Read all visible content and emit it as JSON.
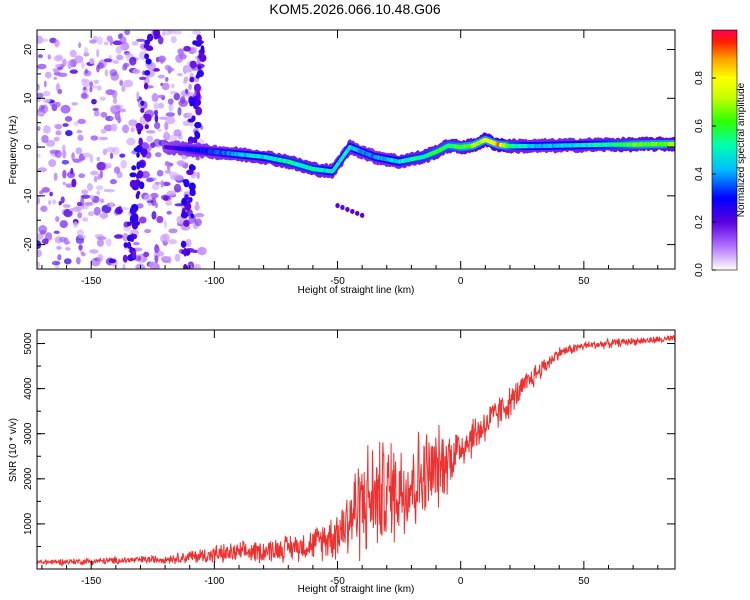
{
  "figure_title": "KOM5.2026.066.10.48.G06",
  "colors": {
    "snr_line": "#ee3030",
    "frame": "#000000",
    "background": "#ffffff"
  },
  "chart_data": [
    {
      "type": "heatmap",
      "title": "KOM5.2026.066.10.48.G06",
      "xlabel": "Height of straight line (km)",
      "ylabel": "Frequency (Hz)",
      "xlim": [
        -172,
        87
      ],
      "ylim": [
        -25,
        24
      ],
      "x_ticks": [
        -150,
        -100,
        -50,
        0,
        50
      ],
      "x_tick_labels": [
        "-150",
        "-100",
        "-50",
        "0",
        "50"
      ],
      "y_ticks": [
        -20,
        -10,
        0,
        10,
        20
      ],
      "y_tick_labels": [
        "-20",
        "-10",
        "0",
        "10",
        "20"
      ],
      "colorbar": {
        "label": "Normalized spectral amplitude",
        "range": [
          0,
          1
        ],
        "ticks": [
          0.0,
          0.2,
          0.4,
          0.6,
          0.8
        ],
        "tick_labels": [
          "0.0",
          "0.2",
          "0.4",
          "0.6",
          "0.8"
        ],
        "colormap": "rainbow (white-violet-blue-cyan-green-yellow-orange-red)"
      },
      "ridge": {
        "description": "frequency of the spectral maximum vs height",
        "height_km": [
          -120,
          -110,
          -100,
          -90,
          -80,
          -70,
          -60,
          -52,
          -45,
          -40,
          -35,
          -30,
          -25,
          -20,
          -15,
          -10,
          -5,
          0,
          5,
          10,
          15,
          20,
          30,
          40,
          50,
          60,
          70,
          80,
          87
        ],
        "freq_hz": [
          0,
          -0.5,
          -1,
          -1.5,
          -2,
          -3,
          -4.5,
          -5,
          0,
          -1,
          -2,
          -2.5,
          -3,
          -2.5,
          -2,
          -1,
          0.3,
          0,
          0.3,
          1.5,
          0.5,
          0.2,
          0.2,
          0.3,
          0.4,
          0.5,
          0.5,
          0.6,
          0.6
        ],
        "amplitude": [
          0.2,
          0.3,
          0.35,
          0.45,
          0.5,
          0.55,
          0.55,
          0.5,
          0.5,
          0.4,
          0.4,
          0.45,
          0.5,
          0.55,
          0.55,
          0.6,
          0.6,
          0.65,
          0.7,
          0.8,
          0.95,
          0.6,
          0.45,
          0.45,
          0.5,
          0.55,
          0.65,
          0.7,
          0.7
        ]
      },
      "noise_region": {
        "description": "scattered weak (violet) spectral amplitude below about -105 km",
        "height_range_km": [
          -172,
          -105
        ],
        "amplitude_range": [
          0.05,
          0.25
        ]
      },
      "secondary_blob": {
        "height_km": [
          -50,
          -40
        ],
        "freq_hz": [
          -14,
          -12
        ],
        "amplitude": 0.2
      }
    },
    {
      "type": "line",
      "xlabel": "Height of straight line (km)",
      "ylabel": "SNR (10 * v/v)",
      "xlim": [
        -172,
        87
      ],
      "ylim": [
        0,
        5300
      ],
      "x_ticks": [
        -150,
        -100,
        -50,
        0,
        50
      ],
      "x_tick_labels": [
        "-150",
        "-100",
        "-50",
        "0",
        "50"
      ],
      "y_ticks": [
        1000,
        2000,
        3000,
        4000,
        5000
      ],
      "y_tick_labels": [
        "1000",
        "2000",
        "3000",
        "4000",
        "5000"
      ],
      "series": [
        {
          "name": "SNR",
          "description": "noisy SNR trace; envelope given as mean and spread",
          "x": [
            -172,
            -150,
            -120,
            -100,
            -80,
            -60,
            -50,
            -40,
            -30,
            -20,
            -10,
            0,
            10,
            20,
            30,
            40,
            50,
            60,
            70,
            80,
            87
          ],
          "mean": [
            150,
            170,
            220,
            320,
            400,
            550,
            800,
            1500,
            1700,
            1900,
            2200,
            2700,
            3200,
            3700,
            4300,
            4800,
            4950,
            5000,
            5050,
            5080,
            5100
          ],
          "spread": [
            80,
            90,
            110,
            250,
            300,
            400,
            700,
            1500,
            1400,
            1400,
            1100,
            600,
            500,
            400,
            300,
            150,
            120,
            120,
            100,
            100,
            100
          ]
        }
      ]
    }
  ]
}
